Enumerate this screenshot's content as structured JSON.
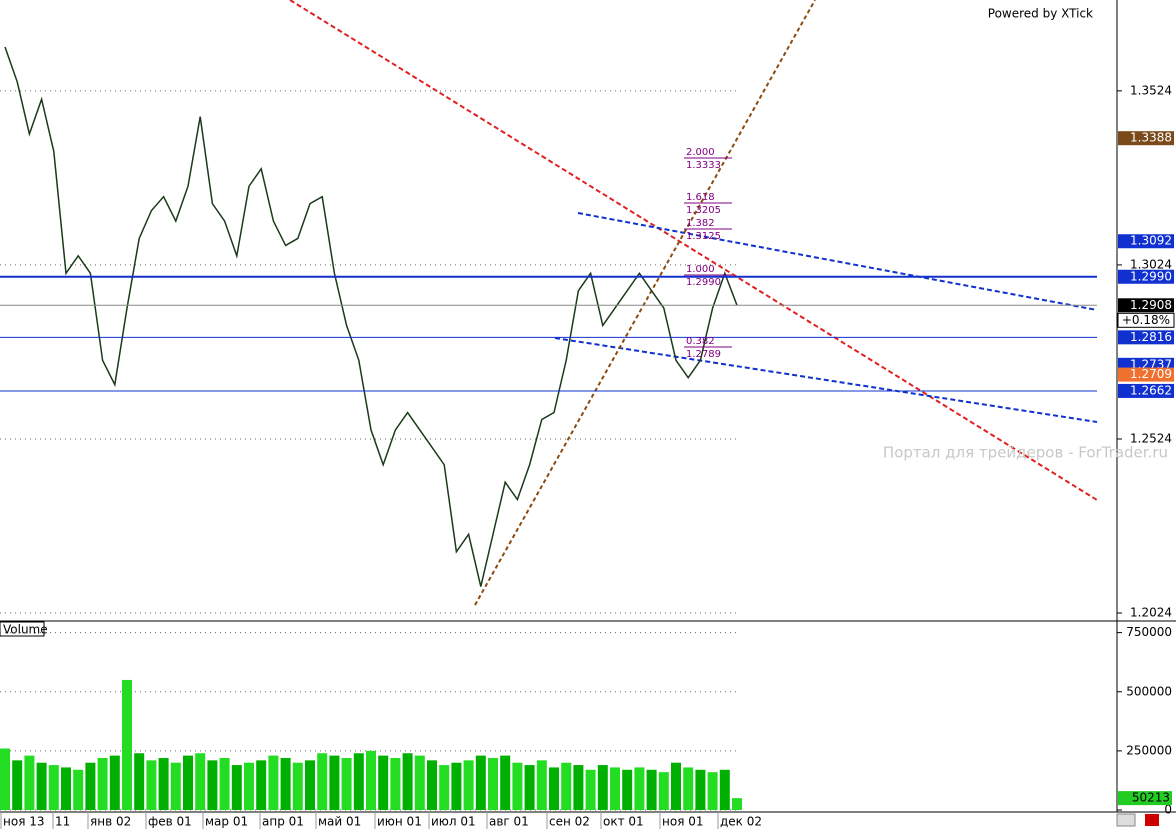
{
  "chart_data": [
    {
      "type": "line",
      "color": "#1a3a1a",
      "values": [
        1.365,
        1.355,
        1.34,
        1.35,
        1.335,
        1.3,
        1.305,
        1.3,
        1.275,
        1.268,
        1.29,
        1.31,
        1.318,
        1.322,
        1.315,
        1.325,
        1.345,
        1.32,
        1.315,
        1.305,
        1.325,
        1.33,
        1.315,
        1.308,
        1.31,
        1.32,
        1.322,
        1.3,
        1.285,
        1.275,
        1.255,
        1.245,
        1.255,
        1.26,
        1.255,
        1.25,
        1.245,
        1.22,
        1.225,
        1.21,
        1.225,
        1.24,
        1.235,
        1.245,
        1.258,
        1.26,
        1.275,
        1.295,
        1.3,
        1.285,
        1.29,
        1.295,
        1.3,
        1.295,
        1.29,
        1.275,
        1.27,
        1.275,
        1.29,
        1.3,
        1.2908
      ],
      "ylim": [
        1.2004,
        1.3785
      ],
      "yticks": [
        1.2024,
        1.2524,
        1.3024,
        1.3524
      ],
      "grid": true,
      "x_labels": [
        "ноя 13",
        "11",
        "янв 02",
        "фев 01",
        "мар 01",
        "апр 01",
        "май 01",
        "июн 01",
        "июл 01",
        "авг 01",
        "сен 02",
        "окт 01",
        "ноя 01",
        "дек 02"
      ],
      "levels": [
        {
          "value": 1.3388,
          "label": "1.3388",
          "color": "#7a4a1a",
          "line": false
        },
        {
          "value": 1.3092,
          "label": "1.3092",
          "color": "#1030d0",
          "line": false
        },
        {
          "value": 1.299,
          "label": "1.2990",
          "color": "#1030d0",
          "line": true
        },
        {
          "value": 1.2908,
          "label": "1.2908",
          "color": "#000000",
          "line": true
        },
        {
          "value": 1.2816,
          "label": "1.2816",
          "color": "#1030d0",
          "line": true
        },
        {
          "value": 1.2737,
          "label": "1.2737",
          "color": "#1030d0",
          "line": false
        },
        {
          "value": 1.2709,
          "label": "1.2709",
          "color": "#f07030",
          "line": false
        },
        {
          "value": 1.2662,
          "label": "1.2662",
          "color": "#1030d0",
          "line": true
        }
      ],
      "change": "+0.18%",
      "fib": [
        [
          "2.000",
          "1.3333"
        ],
        [
          "1.618",
          "1.3205"
        ],
        [
          "1.382",
          "1.3125"
        ],
        [
          "1.000",
          "1.2990"
        ],
        [
          "0.382",
          "1.2789"
        ]
      ],
      "credit": "Powered by XTick",
      "watermark": "Портал для трейдеров - ForTrader.ru"
    },
    {
      "type": "bar",
      "title": "Volume",
      "color": "#22dd22",
      "values": [
        260000,
        210000,
        230000,
        200000,
        190000,
        180000,
        170000,
        200000,
        220000,
        230000,
        550000,
        240000,
        210000,
        220000,
        200000,
        230000,
        240000,
        210000,
        220000,
        190000,
        200000,
        210000,
        230000,
        220000,
        200000,
        210000,
        240000,
        230000,
        220000,
        240000,
        250000,
        230000,
        220000,
        240000,
        230000,
        210000,
        190000,
        200000,
        210000,
        230000,
        220000,
        230000,
        200000,
        190000,
        210000,
        180000,
        200000,
        190000,
        170000,
        190000,
        180000,
        170000,
        180000,
        170000,
        160000,
        200000,
        180000,
        170000,
        160000,
        170000,
        50213
      ],
      "ylim": [
        0,
        795000
      ],
      "yticks": [
        0,
        250000,
        500000,
        750000
      ],
      "grid": true
    }
  ]
}
